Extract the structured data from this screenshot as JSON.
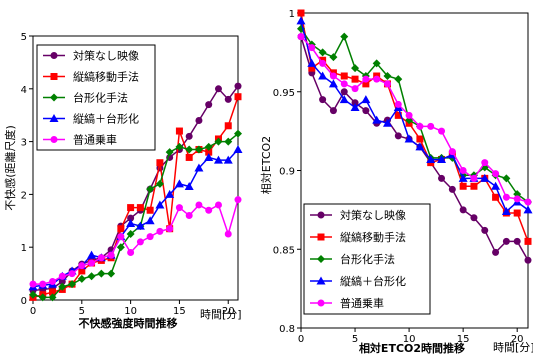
{
  "charts": [
    {
      "type": "line",
      "title": "",
      "xlabel": "不快感強度時間推移",
      "xunit": "時間[分]",
      "ylabel": "不快感(距離尺度)",
      "xlim": [
        0,
        21
      ],
      "ylim": [
        0,
        5
      ],
      "xticks": [
        0,
        5,
        10,
        15,
        20
      ],
      "yticks": [
        0,
        1,
        2,
        3,
        4,
        5
      ],
      "legend_position": "top-left",
      "x": [
        0,
        1,
        2,
        3,
        4,
        5,
        6,
        7,
        8,
        9,
        10,
        11,
        12,
        13,
        14,
        15,
        16,
        17,
        18,
        19,
        20,
        21
      ],
      "series": [
        {
          "name": "対策なし映像",
          "color": "#660066",
          "marker": "circle",
          "values": [
            0.18,
            0.2,
            0.22,
            0.35,
            0.55,
            0.68,
            0.75,
            0.8,
            0.95,
            1.4,
            1.55,
            1.7,
            2.1,
            2.5,
            2.7,
            2.85,
            3.1,
            3.4,
            3.7,
            4.0,
            3.8,
            4.05
          ]
        },
        {
          "name": "縦縞移動手法",
          "color": "#ff0000",
          "marker": "square",
          "values": [
            0.05,
            0.1,
            0.15,
            0.2,
            0.3,
            0.55,
            0.7,
            0.75,
            0.8,
            1.35,
            1.75,
            1.75,
            1.7,
            2.6,
            1.35,
            3.2,
            2.7,
            2.85,
            2.8,
            3.05,
            3.3,
            3.85
          ]
        },
        {
          "name": "台形化手法",
          "color": "#008000",
          "marker": "diamond",
          "values": [
            0.1,
            0.05,
            0.05,
            0.25,
            0.3,
            0.4,
            0.45,
            0.5,
            0.5,
            1.0,
            1.25,
            1.4,
            2.1,
            2.2,
            2.8,
            2.9,
            2.85,
            2.85,
            2.9,
            3.0,
            3.0,
            3.15
          ]
        },
        {
          "name": "縦縞＋台形化",
          "color": "#0000ff",
          "marker": "triangle",
          "values": [
            0.25,
            0.28,
            0.3,
            0.45,
            0.55,
            0.65,
            0.85,
            0.8,
            0.85,
            1.2,
            1.45,
            1.4,
            1.5,
            1.8,
            2.0,
            2.2,
            2.15,
            2.5,
            2.7,
            2.65,
            2.65,
            2.85
          ]
        },
        {
          "name": "普通乗車",
          "color": "#ff00ff",
          "marker": "circle",
          "values": [
            0.3,
            0.3,
            0.35,
            0.45,
            0.5,
            0.65,
            0.7,
            0.8,
            0.85,
            1.2,
            0.9,
            1.1,
            1.2,
            1.3,
            1.35,
            1.75,
            1.6,
            1.8,
            1.7,
            1.8,
            1.25,
            1.9
          ]
        }
      ]
    },
    {
      "type": "line",
      "title": "",
      "xlabel": "相対ETCO2時間推移",
      "xunit": "時間[分]",
      "ylabel": "相対ETCO2",
      "xlim": [
        0,
        21
      ],
      "ylim": [
        0.8,
        1
      ],
      "xticks": [
        0,
        5,
        10,
        15,
        20
      ],
      "yticks": [
        0.8,
        0.85,
        0.9,
        0.95,
        1
      ],
      "ytick_labels": [
        "0.8",
        "0.85",
        "0.9",
        "0.95",
        "1"
      ],
      "legend_position": "bottom-left",
      "x": [
        0,
        1,
        2,
        3,
        4,
        5,
        6,
        7,
        8,
        9,
        10,
        11,
        12,
        13,
        14,
        15,
        16,
        17,
        18,
        19,
        20,
        21
      ],
      "series": [
        {
          "name": "対策なし映像",
          "color": "#660066",
          "marker": "circle",
          "values": [
            0.985,
            0.962,
            0.945,
            0.938,
            0.95,
            0.943,
            0.938,
            0.93,
            0.932,
            0.922,
            0.92,
            0.915,
            0.905,
            0.895,
            0.888,
            0.875,
            0.87,
            0.862,
            0.848,
            0.855,
            0.855,
            0.843
          ]
        },
        {
          "name": "縦縞移動手法",
          "color": "#ff0000",
          "marker": "square",
          "values": [
            1.0,
            0.965,
            0.97,
            0.962,
            0.96,
            0.958,
            0.955,
            0.96,
            0.955,
            0.935,
            0.93,
            0.92,
            0.905,
            0.907,
            0.91,
            0.89,
            0.89,
            0.895,
            0.883,
            0.873,
            0.873,
            0.855
          ]
        },
        {
          "name": "台形化手法",
          "color": "#008000",
          "marker": "diamond",
          "values": [
            0.99,
            0.98,
            0.975,
            0.972,
            0.985,
            0.965,
            0.96,
            0.968,
            0.96,
            0.958,
            0.932,
            0.928,
            0.908,
            0.908,
            0.908,
            0.897,
            0.897,
            0.902,
            0.897,
            0.895,
            0.885,
            0.88
          ]
        },
        {
          "name": "縦縞＋台形化",
          "color": "#0000ff",
          "marker": "triangle",
          "values": [
            0.995,
            0.968,
            0.96,
            0.955,
            0.945,
            0.94,
            0.945,
            0.932,
            0.93,
            0.94,
            0.92,
            0.915,
            0.907,
            0.907,
            0.91,
            0.895,
            0.895,
            0.895,
            0.89,
            0.874,
            0.88,
            0.875
          ]
        },
        {
          "name": "普通乗車",
          "color": "#ff00ff",
          "marker": "circle",
          "values": [
            0.985,
            0.978,
            0.968,
            0.96,
            0.955,
            0.952,
            0.958,
            0.958,
            0.955,
            0.942,
            0.935,
            0.928,
            0.928,
            0.925,
            0.912,
            0.9,
            0.895,
            0.905,
            0.898,
            0.883,
            0.882,
            0.88
          ]
        }
      ]
    }
  ]
}
